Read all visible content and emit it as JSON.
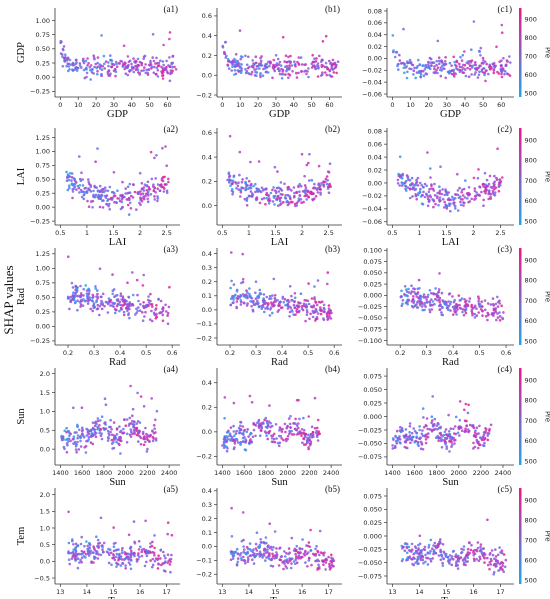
{
  "figure": {
    "ylabel": "SHAP values"
  },
  "colorbar": {
    "label": "Pre",
    "range": [
      480,
      960
    ],
    "ticks": [
      500,
      600,
      700,
      800,
      900
    ],
    "low_color": "#1fa7f0",
    "high_color": "#f0168a"
  },
  "chart_data": [
    {
      "id": "a1",
      "type": "scatter",
      "panel_label": "(a1)",
      "xlabel": "GDP",
      "ylabel": "GDP",
      "xlim": [
        -3,
        67
      ],
      "ylim": [
        -0.35,
        1.22
      ],
      "xticks": [
        0,
        10,
        20,
        30,
        40,
        50,
        60
      ],
      "yticks": [
        -0.25,
        0.0,
        0.25,
        0.5,
        0.75,
        1.0
      ],
      "ytick_labels": [
        "−0.25",
        "0.00",
        "0.25",
        "0.50",
        "0.75",
        "1.00"
      ]
    },
    {
      "id": "b1",
      "type": "scatter",
      "panel_label": "(b1)",
      "xlabel": "GDP",
      "ylabel": "",
      "xlim": [
        -3,
        67
      ],
      "ylim": [
        -0.22,
        0.68
      ],
      "xticks": [
        0,
        10,
        20,
        30,
        40,
        50,
        60
      ],
      "yticks": [
        -0.2,
        0.0,
        0.2,
        0.4,
        0.6
      ],
      "ytick_labels": [
        "−0.2",
        "0.0",
        "0.2",
        "0.4",
        "0.6"
      ]
    },
    {
      "id": "c1",
      "type": "scatter",
      "panel_label": "(c1)",
      "xlabel": "GDP",
      "ylabel": "",
      "xlim": [
        -3,
        67
      ],
      "ylim": [
        -0.065,
        0.085
      ],
      "xticks": [
        0,
        10,
        20,
        30,
        40,
        50,
        60
      ],
      "yticks": [
        -0.06,
        -0.04,
        -0.02,
        0.0,
        0.02,
        0.04,
        0.06,
        0.08
      ],
      "ytick_labels": [
        "−0.06",
        "−0.04",
        "−0.02",
        "0.00",
        "0.02",
        "0.04",
        "0.06",
        "0.08"
      ],
      "colorbar": true
    },
    {
      "id": "a2",
      "type": "scatter",
      "panel_label": "(a2)",
      "xlabel": "LAI",
      "ylabel": "LAI",
      "xlim": [
        0.4,
        2.75
      ],
      "ylim": [
        -0.32,
        1.42
      ],
      "xticks": [
        0.5,
        1.0,
        1.5,
        2.0,
        2.5
      ],
      "yticks": [
        -0.25,
        0.0,
        0.25,
        0.5,
        0.75,
        1.0,
        1.25
      ],
      "ytick_labels": [
        "−0.25",
        "0.00",
        "0.25",
        "0.50",
        "0.75",
        "1.00",
        "1.25"
      ]
    },
    {
      "id": "b2",
      "type": "scatter",
      "panel_label": "(b2)",
      "xlabel": "LAI",
      "ylabel": "",
      "xlim": [
        0.4,
        2.75
      ],
      "ylim": [
        -0.16,
        0.64
      ],
      "xticks": [
        0.5,
        1.0,
        1.5,
        2.0,
        2.5
      ],
      "yticks": [
        0.0,
        0.2,
        0.4,
        0.6
      ],
      "ytick_labels": [
        "0.0",
        "0.2",
        "0.4",
        "0.6"
      ]
    },
    {
      "id": "c2",
      "type": "scatter",
      "panel_label": "(c2)",
      "xlabel": "LAI",
      "ylabel": "",
      "xlim": [
        0.4,
        2.75
      ],
      "ylim": [
        -0.065,
        0.085
      ],
      "xticks": [
        0.5,
        1.0,
        1.5,
        2.0,
        2.5
      ],
      "yticks": [
        -0.06,
        -0.04,
        -0.02,
        0.0,
        0.02,
        0.04,
        0.06,
        0.08
      ],
      "ytick_labels": [
        "−0.06",
        "−0.04",
        "−0.02",
        "0.00",
        "0.02",
        "0.04",
        "0.06",
        "0.08"
      ],
      "colorbar": true
    },
    {
      "id": "a3",
      "type": "scatter",
      "panel_label": "(a3)",
      "xlabel": "Rad",
      "ylabel": "Rad",
      "xlim": [
        0.15,
        0.63
      ],
      "ylim": [
        -0.32,
        1.35
      ],
      "xticks": [
        0.2,
        0.3,
        0.4,
        0.5,
        0.6
      ],
      "yticks": [
        -0.25,
        0.0,
        0.25,
        0.5,
        0.75,
        1.0,
        1.25
      ],
      "ytick_labels": [
        "−0.25",
        "0.00",
        "0.25",
        "0.50",
        "0.75",
        "1.00",
        "1.25"
      ]
    },
    {
      "id": "b3",
      "type": "scatter",
      "panel_label": "(b3)",
      "xlabel": "Rad",
      "ylabel": "",
      "xlim": [
        0.15,
        0.63
      ],
      "ylim": [
        -0.25,
        0.44
      ],
      "xticks": [
        0.2,
        0.3,
        0.4,
        0.5,
        0.6
      ],
      "yticks": [
        -0.2,
        -0.1,
        0.0,
        0.1,
        0.2,
        0.3,
        0.4
      ],
      "ytick_labels": [
        "−0.2",
        "−0.1",
        "0.0",
        "0.1",
        "0.2",
        "0.3",
        "0.4"
      ]
    },
    {
      "id": "c3",
      "type": "scatter",
      "panel_label": "(c3)",
      "xlabel": "Rad",
      "ylabel": "",
      "xlim": [
        0.15,
        0.63
      ],
      "ylim": [
        -0.11,
        0.105
      ],
      "xticks": [
        0.2,
        0.3,
        0.4,
        0.5,
        0.6
      ],
      "yticks": [
        -0.1,
        -0.075,
        -0.05,
        -0.025,
        0.0,
        0.025,
        0.05,
        0.075,
        0.1
      ],
      "ytick_labels": [
        "−0.100",
        "−0.075",
        "−0.050",
        "−0.025",
        "0.000",
        "0.025",
        "0.050",
        "0.075",
        "0.100"
      ],
      "colorbar": true
    },
    {
      "id": "a4",
      "type": "scatter",
      "panel_label": "(a4)",
      "xlabel": "Sun",
      "ylabel": "Sun",
      "xlim": [
        1350,
        2500
      ],
      "ylim": [
        -0.42,
        2.15
      ],
      "xticks": [
        1400,
        1600,
        1800,
        2000,
        2200,
        2400
      ],
      "yticks": [
        0.0,
        0.5,
        1.0,
        1.5,
        2.0
      ],
      "ytick_labels": [
        "0.0",
        "0.5",
        "1.0",
        "1.5",
        "2.0"
      ]
    },
    {
      "id": "b4",
      "type": "scatter",
      "panel_label": "(b4)",
      "xlabel": "Sun",
      "ylabel": "",
      "xlim": [
        1350,
        2500
      ],
      "ylim": [
        -0.27,
        0.52
      ],
      "xticks": [
        1400,
        1600,
        1800,
        2000,
        2200,
        2400
      ],
      "yticks": [
        -0.2,
        0.0,
        0.2,
        0.4
      ],
      "ytick_labels": [
        "−0.2",
        "0.0",
        "0.2",
        "0.4"
      ]
    },
    {
      "id": "c4",
      "type": "scatter",
      "panel_label": "(c4)",
      "xlabel": "Sun",
      "ylabel": "",
      "xlim": [
        1350,
        2500
      ],
      "ylim": [
        -0.09,
        0.09
      ],
      "xticks": [
        1400,
        1600,
        1800,
        2000,
        2200,
        2400
      ],
      "yticks": [
        -0.075,
        -0.05,
        -0.025,
        0.0,
        0.025,
        0.05,
        0.075
      ],
      "ytick_labels": [
        "−0.075",
        "−0.050",
        "−0.025",
        "0.000",
        "0.025",
        "0.050",
        "0.075"
      ],
      "colorbar": true
    },
    {
      "id": "a5",
      "type": "scatter",
      "panel_label": "(a5)",
      "xlabel": "Tem",
      "ylabel": "Tem",
      "xlim": [
        12.8,
        17.5
      ],
      "ylim": [
        -0.68,
        2.2
      ],
      "xticks": [
        13,
        14,
        15,
        16,
        17
      ],
      "yticks": [
        -0.5,
        0.0,
        0.5,
        1.0,
        1.5,
        2.0
      ],
      "ytick_labels": [
        "−0.5",
        "0.0",
        "0.5",
        "1.0",
        "1.5",
        "2.0"
      ]
    },
    {
      "id": "b5",
      "type": "scatter",
      "panel_label": "(b5)",
      "xlabel": "Tem",
      "ylabel": "",
      "xlim": [
        12.8,
        17.5
      ],
      "ylim": [
        -0.27,
        0.42
      ],
      "xticks": [
        13,
        14,
        15,
        16,
        17
      ],
      "yticks": [
        -0.2,
        -0.1,
        0.0,
        0.1,
        0.2,
        0.3,
        0.4
      ],
      "ytick_labels": [
        "−0.2",
        "−0.1",
        "0.0",
        "0.1",
        "0.2",
        "0.3",
        "0.4"
      ]
    },
    {
      "id": "c5",
      "type": "scatter",
      "panel_label": "(c5)",
      "xlabel": "Tem",
      "ylabel": "",
      "xlim": [
        12.8,
        17.5
      ],
      "ylim": [
        -0.09,
        0.09
      ],
      "xticks": [
        13,
        14,
        15,
        16,
        17
      ],
      "yticks": [
        -0.075,
        -0.05,
        -0.025,
        0.0,
        0.025,
        0.05,
        0.075
      ],
      "ytick_labels": [
        "−0.075",
        "−0.050",
        "−0.025",
        "0.000",
        "0.025",
        "0.050",
        "0.075"
      ],
      "colorbar": true
    }
  ]
}
